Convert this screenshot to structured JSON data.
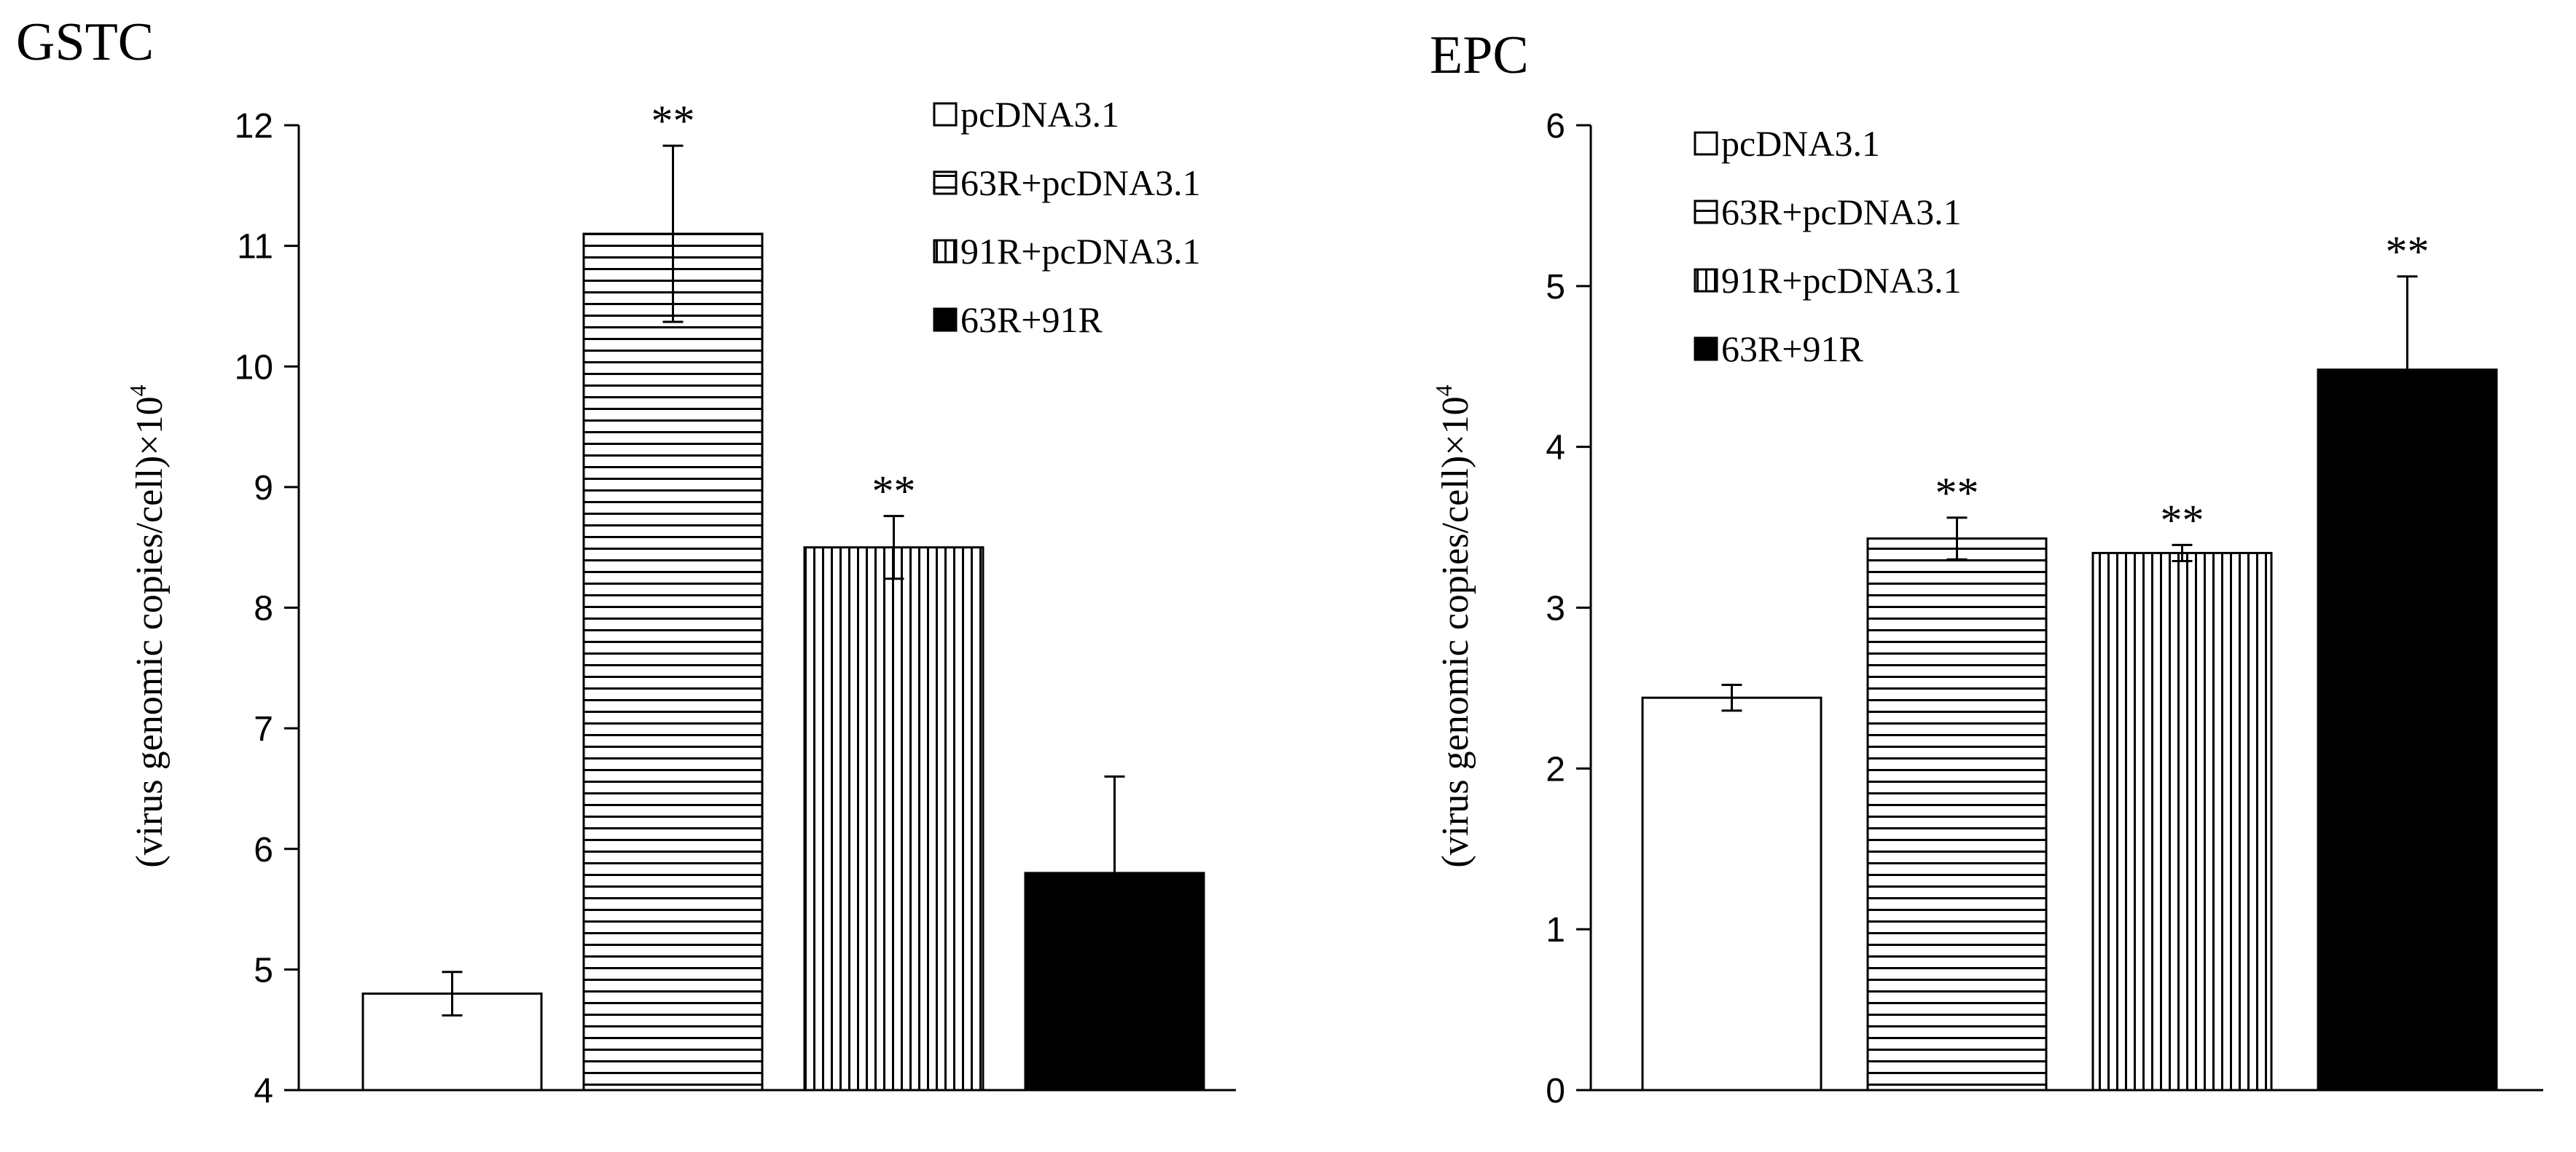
{
  "chart_data": [
    {
      "type": "bar",
      "title": "GSTC",
      "xlabel": "",
      "ylabel": "(virus genomic copies/cell)×10",
      "ylabel_superscript": "4",
      "ylim": [
        4,
        12
      ],
      "yticks": [
        "4",
        "5",
        "6",
        "7",
        "8",
        "9",
        "10",
        "11",
        "12"
      ],
      "grid": false,
      "legend_position": "top-right",
      "categories": [
        "pcDNA3.1",
        "63R+pcDNA3.1",
        "91R+pcDNA3.1",
        "63R+91R"
      ],
      "values": [
        4.8,
        11.1,
        8.5,
        5.8
      ],
      "errors": [
        0.18,
        0.73,
        0.26,
        0.8
      ],
      "annotations": [
        "",
        "**",
        "**",
        ""
      ],
      "patterns": [
        "white",
        "horizontal",
        "vertical",
        "black"
      ],
      "legend": [
        "pcDNA3.1",
        "63R+pcDNA3.1",
        "91R+pcDNA3.1",
        "63R+91R"
      ]
    },
    {
      "type": "bar",
      "title": "EPC",
      "xlabel": "",
      "ylabel": "(virus genomic copies/cell)×10",
      "ylabel_superscript": "4",
      "ylim": [
        0,
        6
      ],
      "yticks": [
        "0",
        "1",
        "2",
        "3",
        "4",
        "5",
        "6"
      ],
      "grid": false,
      "legend_position": "top-left",
      "categories": [
        "pcDNA3.1",
        "63R+pcDNA3.1",
        "91R+pcDNA3.1",
        "63R+91R"
      ],
      "values": [
        2.44,
        3.43,
        3.34,
        4.48
      ],
      "errors": [
        0.08,
        0.13,
        0.05,
        0.58
      ],
      "annotations": [
        "",
        "**",
        "**",
        "**"
      ],
      "patterns": [
        "white",
        "horizontal",
        "vertical",
        "black"
      ],
      "legend": [
        "pcDNA3.1",
        "63R+pcDNA3.1",
        "91R+pcDNA3.1",
        "63R+91R"
      ]
    }
  ]
}
